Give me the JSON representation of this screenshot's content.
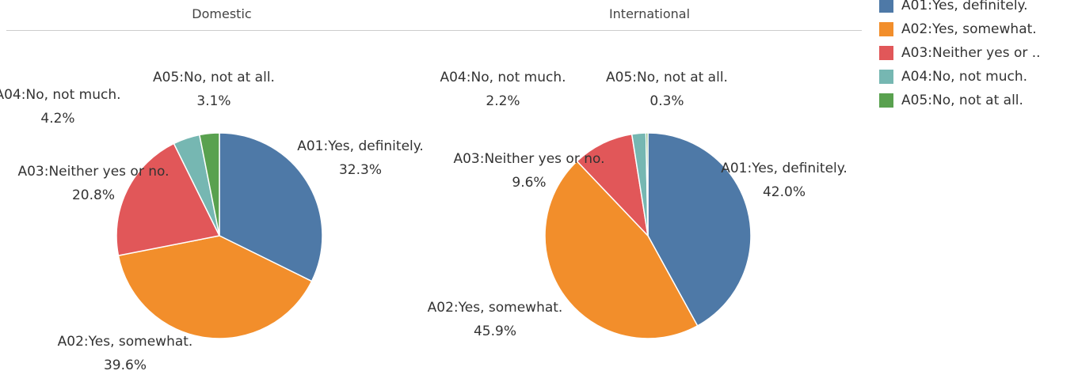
{
  "chart_data": {
    "type": "pie",
    "colors": {
      "A01:Yes, definitely.": "#4e79a7",
      "A02:Yes, somewhat.": "#f28e2b",
      "A03:Neither yes or no.": "#e15759",
      "A04:No, not much.": "#76b7b2",
      "A05:No, not at all.": "#59a14f"
    },
    "legend": {
      "placement": "top-right",
      "entries": [
        {
          "label": "A01:Yes, definitely.",
          "color": "#4e79a7"
        },
        {
          "label": "A02:Yes, somewhat.",
          "color": "#f28e2b"
        },
        {
          "label": "A03:Neither yes or ..",
          "color": "#e15759"
        },
        {
          "label": "A04:No, not much.",
          "color": "#76b7b2"
        },
        {
          "label": "A05:No, not at all.",
          "color": "#59a14f"
        }
      ]
    },
    "panels": [
      {
        "title": "Domestic",
        "slices": [
          {
            "category": "A01:Yes, definitely.",
            "value": 32.3,
            "value_label": "32.3%"
          },
          {
            "category": "A02:Yes, somewhat.",
            "value": 39.6,
            "value_label": "39.6%"
          },
          {
            "category": "A03:Neither yes or no.",
            "value": 20.8,
            "value_label": "20.8%"
          },
          {
            "category": "A04:No, not much.",
            "value": 4.2,
            "value_label": "4.2%"
          },
          {
            "category": "A05:No, not at all.",
            "value": 3.1,
            "value_label": "3.1%"
          }
        ]
      },
      {
        "title": "International",
        "slices": [
          {
            "category": "A01:Yes, definitely.",
            "value": 42.0,
            "value_label": "42.0%"
          },
          {
            "category": "A02:Yes, somewhat.",
            "value": 45.9,
            "value_label": "45.9%"
          },
          {
            "category": "A03:Neither yes or no.",
            "value": 9.6,
            "value_label": "9.6%"
          },
          {
            "category": "A04:No, not much.",
            "value": 2.2,
            "value_label": "2.2%"
          },
          {
            "category": "A05:No, not at all.",
            "value": 0.3,
            "value_label": "0.3%"
          }
        ]
      }
    ]
  }
}
